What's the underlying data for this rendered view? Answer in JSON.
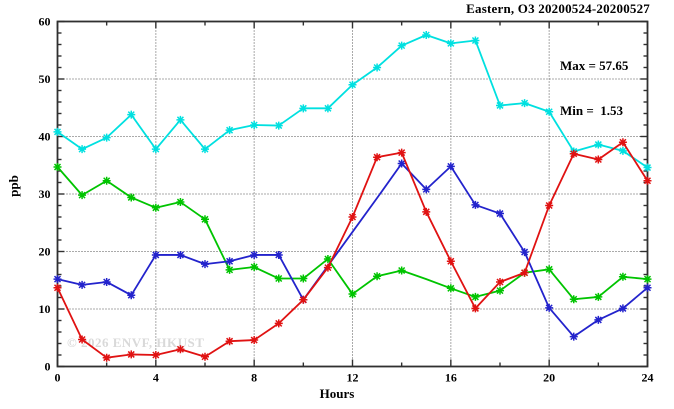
{
  "title": "Eastern, O3 20200524-20200527",
  "stats": {
    "max_label": "Max = 57.65",
    "min_label": "Min =  1.53"
  },
  "watermark": "© 2026 ENVF, HKUST",
  "chart_data": {
    "type": "line",
    "title": "Eastern, O3 20200524-20200527",
    "xlabel": "Hours",
    "ylabel": "ppb",
    "xlim": [
      0,
      24
    ],
    "ylim": [
      0,
      60
    ],
    "xtick_labels": [
      0,
      4,
      8,
      12,
      16,
      20,
      24
    ],
    "xtick_minor_step": 2,
    "ytick_labels": [
      0,
      10,
      20,
      30,
      40,
      50,
      60
    ],
    "ytick_minor_step": 2,
    "grid_x": [
      4,
      8,
      12,
      16,
      20
    ],
    "grid_y": [
      10,
      20,
      30,
      40,
      50
    ],
    "grid_style": "dotted",
    "legend_position": "none",
    "max_value": 57.65,
    "min_value": 1.53,
    "x": [
      0,
      1,
      2,
      3,
      4,
      5,
      6,
      7,
      8,
      9,
      10,
      11,
      12,
      13,
      14,
      15,
      16,
      17,
      18,
      19,
      20,
      21,
      22,
      23,
      24
    ],
    "series": [
      {
        "name": "o3-day1-cyan",
        "color": "#00e0e0",
        "values": [
          40.8,
          37.8,
          39.8,
          43.8,
          37.8,
          42.9,
          37.8,
          41.1,
          42.0,
          41.9,
          44.9,
          44.9,
          49.0,
          52.0,
          55.8,
          57.65,
          56.2,
          56.7,
          45.4,
          45.8,
          44.3,
          37.4,
          38.6,
          37.5,
          34.6
        ],
        "marker_gaps": []
      },
      {
        "name": "o3-day2-green",
        "color": "#00c400",
        "values": [
          34.7,
          29.8,
          32.3,
          29.4,
          27.6,
          28.6,
          25.6,
          16.8,
          17.3,
          15.3,
          15.3,
          18.7,
          12.6,
          15.7,
          16.7,
          15.2,
          13.6,
          12.1,
          13.2,
          16.3,
          16.9,
          11.7,
          12.1,
          15.6,
          15.2
        ],
        "marker_gaps": [
          15
        ]
      },
      {
        "name": "o3-day3-blue",
        "color": "#2323cc",
        "values": [
          15.2,
          14.2,
          14.7,
          12.4,
          19.4,
          19.4,
          17.8,
          18.3,
          19.4,
          19.4,
          11.6,
          17.5,
          23.4,
          29.3,
          35.3,
          30.8,
          34.8,
          28.1,
          26.6,
          19.9,
          10.2,
          5.2,
          8.1,
          10.1,
          13.7
        ],
        "marker_gaps": [
          11,
          12,
          13
        ]
      },
      {
        "name": "o3-day4-red",
        "color": "#e01212",
        "values": [
          13.7,
          4.7,
          1.53,
          2.1,
          2.0,
          3.0,
          1.7,
          4.4,
          4.6,
          7.5,
          11.6,
          17.2,
          26.0,
          36.4,
          37.2,
          26.9,
          18.3,
          10.1,
          14.7,
          16.3,
          28.0,
          37.0,
          36.0,
          39.0,
          32.3
        ],
        "marker_gaps": []
      }
    ]
  }
}
